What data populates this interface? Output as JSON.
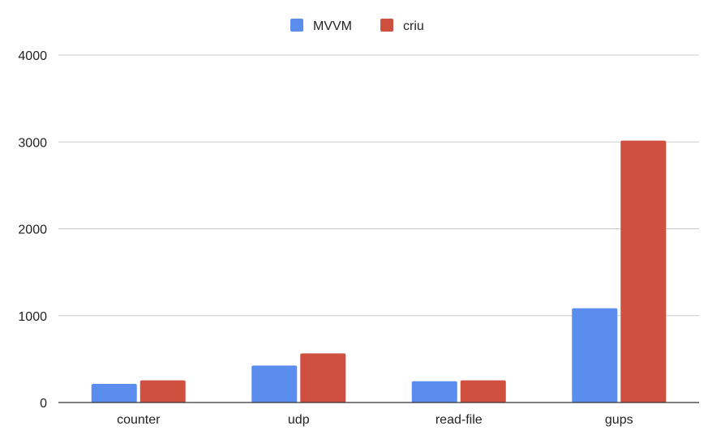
{
  "chart_data": {
    "type": "bar",
    "title": "",
    "xlabel": "",
    "ylabel": "",
    "categories": [
      "counter",
      "udp",
      "read-file",
      "gups"
    ],
    "series": [
      {
        "name": "MVVM",
        "color": "#5b8def",
        "values": [
          215,
          425,
          245,
          1085
        ]
      },
      {
        "name": "criu",
        "color": "#d05040",
        "values": [
          255,
          565,
          255,
          3015
        ]
      }
    ],
    "ylim": [
      0,
      4000
    ],
    "yticks": [
      0,
      1000,
      2000,
      3000,
      4000
    ],
    "grid": true,
    "legend": "top-center"
  }
}
